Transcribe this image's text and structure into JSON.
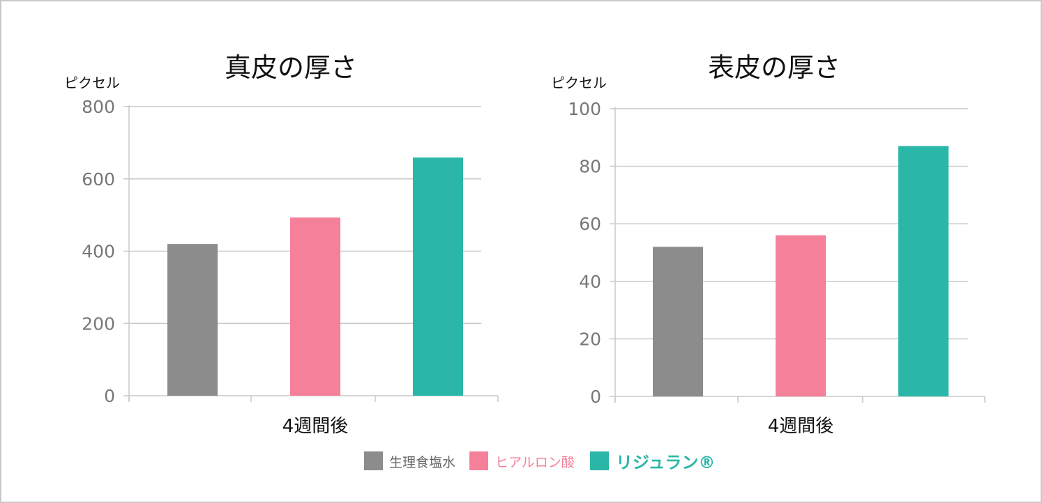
{
  "colors": {
    "saline": "#8c8c8c",
    "hyaluronic": "#f48199",
    "rejuran": "#2bb7a7",
    "grid": "#c8c8c8",
    "tick_text": "#777777"
  },
  "legend": [
    {
      "label": "生理食塩水",
      "color": "#8c8c8c"
    },
    {
      "label": "ヒアルロン酸",
      "color": "#f48199"
    },
    {
      "label": "リジュラン®",
      "color": "#2bb7a7"
    }
  ],
  "chart_data": [
    {
      "type": "bar",
      "title": "真皮の厚さ",
      "ylabel": "ピクセル",
      "xlabel": "4週間後",
      "ylim": [
        0,
        800
      ],
      "yticks": [
        "0",
        "200",
        "400",
        "600",
        "800"
      ],
      "grid": true,
      "legend_position": "bottom",
      "series": [
        {
          "name": "生理食塩水",
          "values": [
            420
          ]
        },
        {
          "name": "ヒアルロン酸",
          "values": [
            493
          ]
        },
        {
          "name": "リジュラン®",
          "values": [
            659
          ]
        }
      ]
    },
    {
      "type": "bar",
      "title": "表皮の厚さ",
      "ylabel": "ピクセル",
      "xlabel": "4週間後",
      "ylim": [
        0,
        100
      ],
      "yticks": [
        "0",
        "20",
        "40",
        "60",
        "80",
        "100"
      ],
      "grid": true,
      "legend_position": "bottom",
      "series": [
        {
          "name": "生理食塩水",
          "values": [
            52
          ]
        },
        {
          "name": "ヒアルロン酸",
          "values": [
            56
          ]
        },
        {
          "name": "リジュラン®",
          "values": [
            87
          ]
        }
      ]
    }
  ]
}
